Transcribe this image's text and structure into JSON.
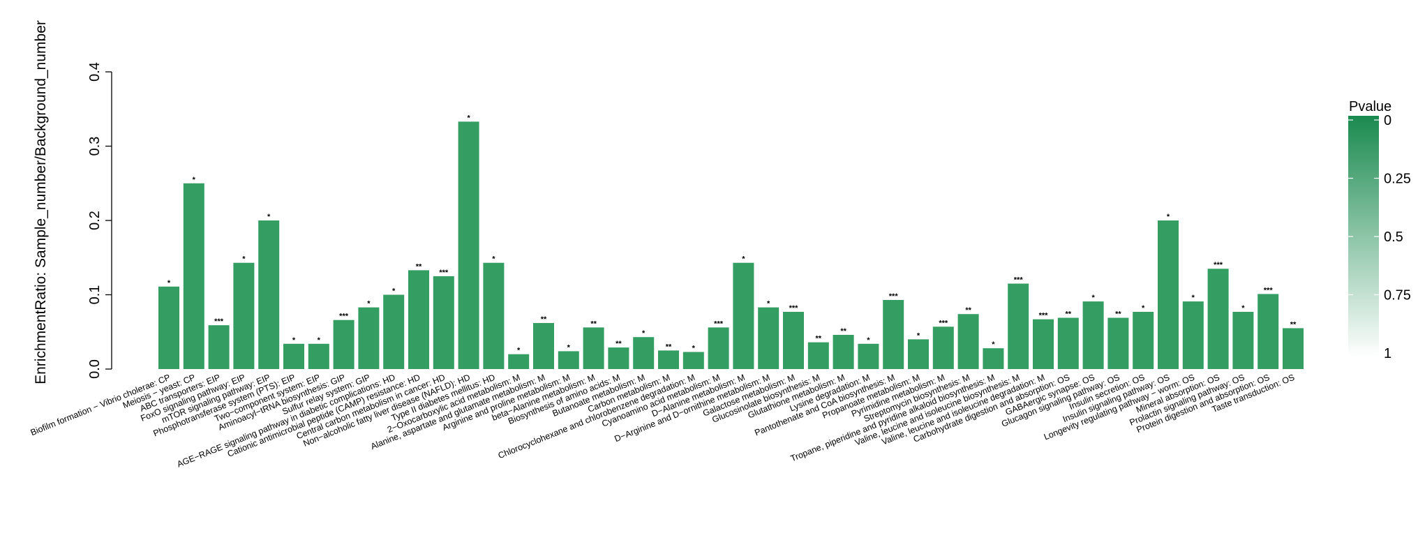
{
  "chart_data": {
    "type": "bar",
    "ylabel": "EnrichmentRatio: Sample_number/Background_number",
    "ylim": [
      0,
      0.4
    ],
    "yticks": [
      0.0,
      0.1,
      0.2,
      0.3,
      0.4
    ],
    "ytick_labels": [
      "0.0",
      "0.1",
      "0.2",
      "0.3",
      "0.4"
    ],
    "bar_color": "#349e62",
    "categories": [
      "Biofilm formation − Vibrio cholerae:  CP",
      "Meiosis − yeast:  CP",
      "ABC transporters:  EIP",
      "FoxO signaling pathway:  EIP",
      "mTOR signaling pathway:  EIP",
      "Phosphotransferase system (PTS):  EIP",
      "Two−component system:  EIP",
      "Aminoacyl−tRNA biosynthesis:  GIP",
      "Sulfur relay system:  GIP",
      "AGE−RAGE signaling pathway in diabetic complications:  HD",
      "Cationic antimicrobial peptide (CAMP) resistance:  HD",
      "Central carbon metabolism in cancer:  HD",
      "Non−alcoholic fatty liver disease (NAFLD):  HD",
      "Type II diabetes mellitus:  HD",
      "2−Oxocarboxylic acid metabolism:  M",
      "Alanine, aspartate and glutamate metabolism:  M",
      "Arginine and proline metabolism:  M",
      "beta−Alanine metabolism:  M",
      "Biosynthesis of amino acids:  M",
      "Butanoate metabolism:  M",
      "Carbon metabolism:  M",
      "Chlorocyclohexane and chlorobenzene degradation:  M",
      "Cyanoamino acid metabolism:  M",
      "D−Alanine metabolism:  M",
      "D−Arginine and D−ornithine metabolism:  M",
      "Galactose metabolism:  M",
      "Glucosinolate biosynthesis:  M",
      "Glutathione metabolism:  M",
      "Lysine degradation:  M",
      "Pantothenate and CoA biosynthesis:  M",
      "Propanoate metabolism:  M",
      "Pyrimidine metabolism:  M",
      "Streptomycin biosynthesis:  M",
      "Tropane, piperidine and pyridine alkaloid biosynthesis:  M",
      "Valine, leucine and isoleucine biosynthesis:  M",
      "Valine, leucine and isoleucine degradation:  M",
      "Carbohydrate digestion and absorption:  OS",
      "GABAergic synapse:  OS",
      "Glucagon signaling pathway:  OS",
      "Insulin secretion:  OS",
      "Insulin signaling pathway:  OS",
      "Longevity regulating pathway − worm:  OS",
      "Mineral absorption:  OS",
      "Prolactin signaling pathway:  OS",
      "Protein digestion and absorption:  OS",
      "Taste transduction:  OS"
    ],
    "values": [
      0.111,
      0.25,
      0.059,
      0.143,
      0.2,
      0.034,
      0.034,
      0.066,
      0.083,
      0.1,
      0.133,
      0.125,
      0.333,
      0.143,
      0.02,
      0.062,
      0.024,
      0.056,
      0.029,
      0.043,
      0.025,
      0.023,
      0.056,
      0.143,
      0.083,
      0.077,
      0.036,
      0.046,
      0.034,
      0.093,
      0.04,
      0.057,
      0.074,
      0.028,
      0.115,
      0.067,
      0.069,
      0.091,
      0.069,
      0.077,
      0.2,
      0.091,
      0.135,
      0.077,
      0.101,
      0.055
    ],
    "significance": [
      "*",
      "*",
      "***",
      "*",
      "*",
      "*",
      "*",
      "***",
      "*",
      "*",
      "**",
      "***",
      "*",
      "*",
      "*",
      "**",
      "*",
      "**",
      "**",
      "*",
      "**",
      "*",
      "***",
      "*",
      "*",
      "***",
      "**",
      "**",
      "*",
      "***",
      "*",
      "***",
      "**",
      "*",
      "***",
      "***",
      "**",
      "*",
      "**",
      "*",
      "*",
      "*",
      "***",
      "*",
      "***",
      "**"
    ],
    "legend": {
      "title": "Pvalue",
      "ticks": [
        "0",
        "0.25",
        "0.5",
        "0.75",
        "1"
      ],
      "color_high": "#1a8a4f",
      "color_low": "#ffffff"
    }
  }
}
